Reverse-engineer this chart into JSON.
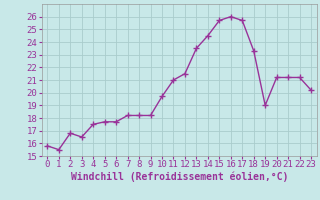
{
  "x": [
    0,
    1,
    2,
    3,
    4,
    5,
    6,
    7,
    8,
    9,
    10,
    11,
    12,
    13,
    14,
    15,
    16,
    17,
    18,
    19,
    20,
    21,
    22,
    23
  ],
  "y": [
    15.8,
    15.5,
    16.8,
    16.5,
    17.5,
    17.7,
    17.7,
    18.2,
    18.2,
    18.2,
    19.7,
    21.0,
    21.5,
    23.5,
    24.5,
    25.7,
    26.0,
    25.7,
    23.3,
    19.0,
    21.2,
    21.2,
    21.2,
    20.2
  ],
  "line_color": "#993399",
  "marker": "+",
  "marker_color": "#993399",
  "bg_color": "#c8e8e8",
  "grid_color": "#aacccc",
  "xlabel": "Windchill (Refroidissement éolien,°C)",
  "xlim": [
    -0.5,
    23.5
  ],
  "ylim": [
    15,
    27
  ],
  "yticks": [
    15,
    16,
    17,
    18,
    19,
    20,
    21,
    22,
    23,
    24,
    25,
    26
  ],
  "xticks": [
    0,
    1,
    2,
    3,
    4,
    5,
    6,
    7,
    8,
    9,
    10,
    11,
    12,
    13,
    14,
    15,
    16,
    17,
    18,
    19,
    20,
    21,
    22,
    23
  ],
  "xlabel_fontsize": 7.0,
  "tick_fontsize": 6.5,
  "label_color": "#993399"
}
